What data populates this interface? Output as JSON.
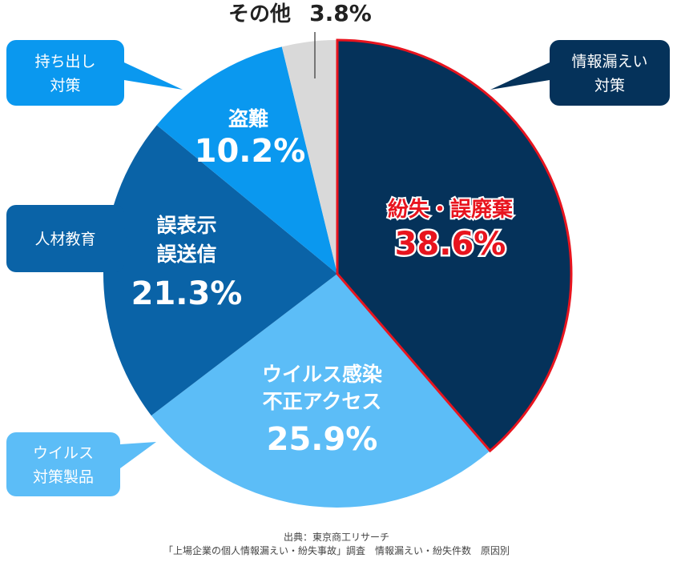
{
  "chart_data": {
    "type": "pie",
    "title": "",
    "start": "top",
    "direction": "clockwise",
    "slices": [
      {
        "name": "紛失・誤廃棄",
        "lines": [
          "紛失・誤廃棄"
        ],
        "value": 38.6,
        "label": "38.6%",
        "color": "#05325a",
        "text_color": "#e8141e",
        "highlight": true
      },
      {
        "name": "ウイルス感染 不正アクセス",
        "lines": [
          "ウイルス感染",
          "不正アクセス"
        ],
        "value": 25.9,
        "label": "25.9%",
        "color": "#5cbdf7",
        "text_color": "#ffffff"
      },
      {
        "name": "誤表示 誤送信",
        "lines": [
          "誤表示",
          "誤送信"
        ],
        "value": 21.3,
        "label": "21.3%",
        "color": "#0a63a7",
        "text_color": "#ffffff"
      },
      {
        "name": "盗難",
        "lines": [
          "盗難"
        ],
        "value": 10.2,
        "label": "10.2%",
        "color": "#0a98ef",
        "text_color": "#ffffff"
      },
      {
        "name": "その他",
        "lines": [
          "その他"
        ],
        "value": 3.8,
        "label": "3.8%",
        "color": "#d9d9d9",
        "text_color": "#222222"
      }
    ],
    "callouts": [
      {
        "lines": [
          "情報漏えい",
          "対策"
        ],
        "color": "#05325a"
      },
      {
        "lines": [
          "持ち出し",
          "対策"
        ],
        "color": "#0a98ef"
      },
      {
        "lines": [
          "人材教育"
        ],
        "color": "#0a63a7"
      },
      {
        "lines": [
          "ウイルス",
          "対策製品"
        ],
        "color": "#5cbdf7"
      }
    ],
    "source": [
      "出典：東京商工リサーチ",
      "「上場企業の個人情報漏えい・紛失事故」調査　情報漏えい・紛失件数　原因別"
    ]
  }
}
